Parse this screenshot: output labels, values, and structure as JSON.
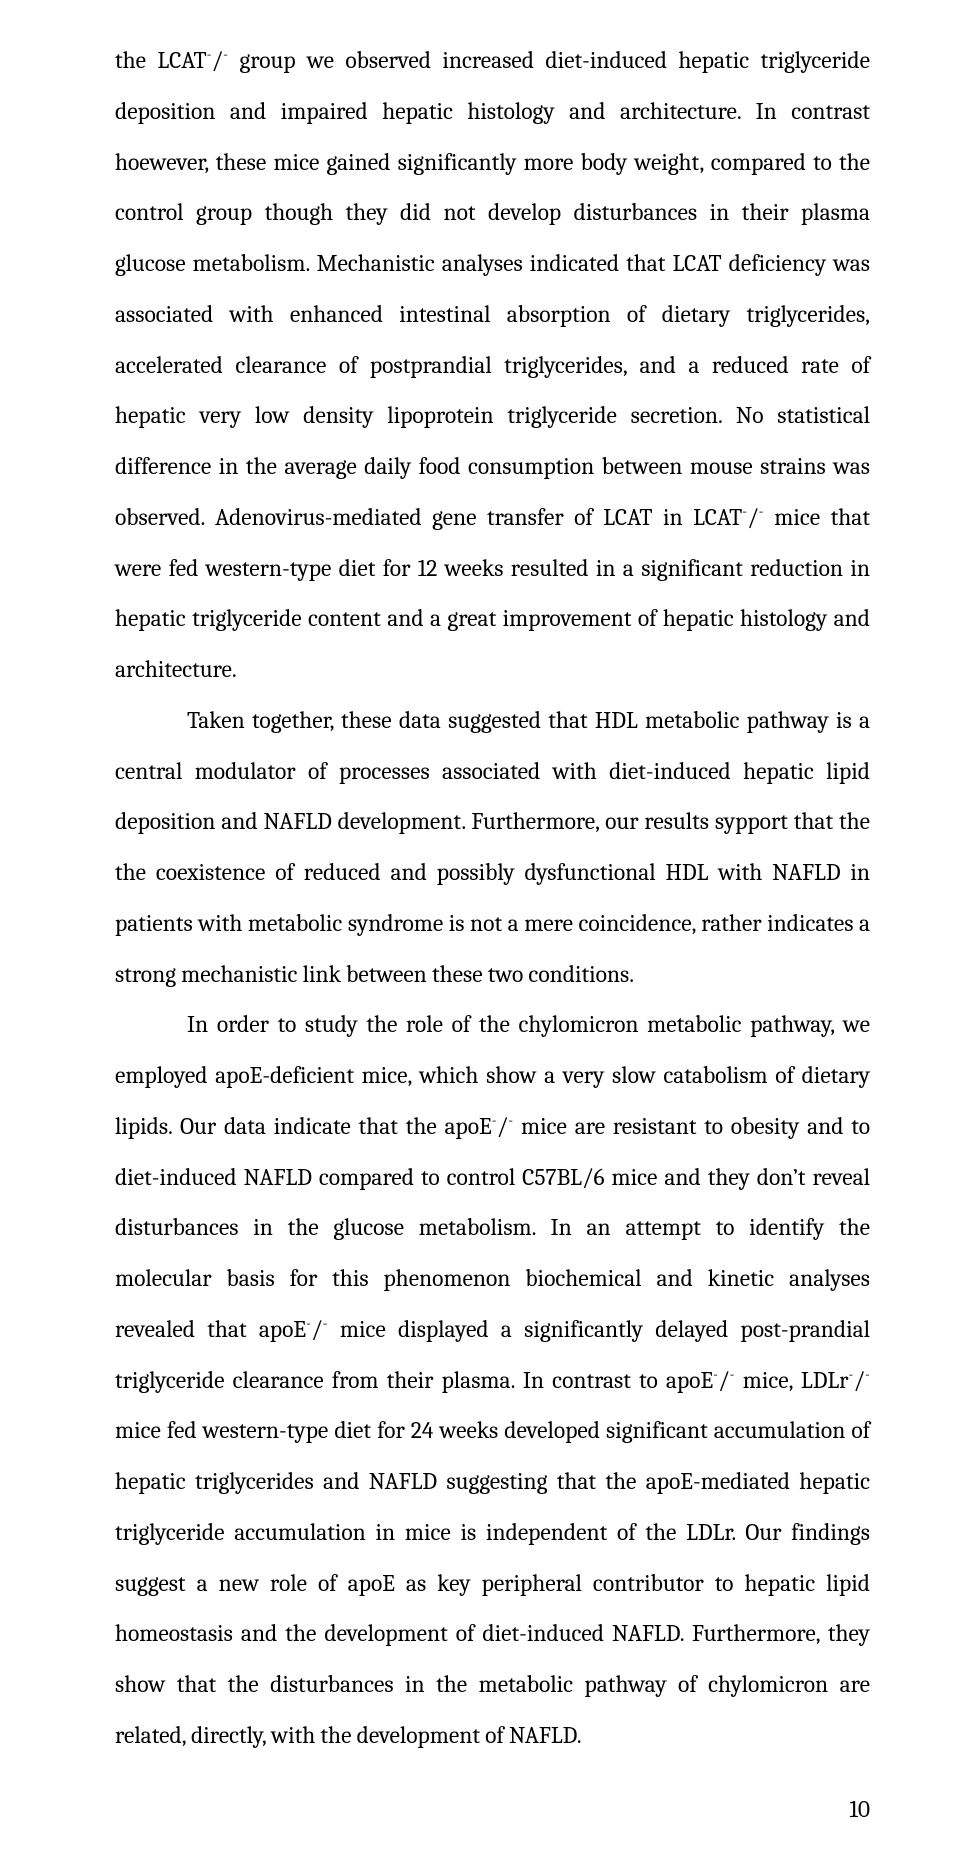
{
  "page": {
    "number": "10",
    "paragraphs": [
      {
        "indent": false,
        "html": "the LCAT<sup class=\"frac\">-</sup>/<sup class=\"frac\">-</sup> group we observed increased diet-induced hepatic triglyceride deposition and impaired hepatic histology and architecture. In contrast hoewever, these mice gained significantly more body weight, compared to the control group though they did not develop disturbances in their plasma glucose metabolism. Mechanistic analyses indicated that LCAT deficiency was associated with enhanced intestinal absorption of dietary triglycerides, accelerated clearance of postprandial triglycerides, and a reduced rate of hepatic very low density lipoprotein triglyceride secretion. No statistical difference in the average daily food consumption between mouse strains was observed. Adenovirus-mediated gene transfer of LCAT in LCAT<sup class=\"frac\">-</sup>/<sup class=\"frac\">-</sup> mice that were fed western-type diet for 12 weeks resulted in a significant reduction in hepatic triglyceride content and a great improvement of hepatic histology and architecture."
      },
      {
        "indent": true,
        "html": "Taken together, these data suggested that HDL metabolic pathway is a central modulator of processes associated with diet-induced hepatic lipid deposition and NAFLD development. Furthermore, our results sypport that the the coexistence of reduced and possibly dysfunctional HDL with NAFLD in patients with metabolic syndrome is not a mere coincidence,  rather indicates a strong mechanistic link between these two conditions."
      },
      {
        "indent": true,
        "html": "In order to study the role of the chylomicron metabolic pathway, we employed apoE-deficient mice, which show a very slow catabolism of dietary lipids. Our data indicate that the apoE<sup class=\"frac\">-</sup>/<sup class=\"frac\">-</sup> mice are resistant to obesity and to diet-induced NAFLD compared to control C57BL/6 mice and they don&rsquo;t reveal disturbances in the glucose metabolism. In an attempt to identify the molecular basis for this phenomenon biochemical and kinetic analyses revealed that apoE<sup class=\"frac\">-</sup>/<sup class=\"frac\">-</sup> mice displayed a significantly delayed post-prandial triglyceride clearance from their plasma. In contrast to apoE<sup class=\"frac\">-</sup>/<sup class=\"frac\">-</sup> mice, LDLr<sup class=\"frac\">-</sup>/<sup class=\"frac\">-</sup> mice fed western-type diet for 24 weeks developed significant accumulation of hepatic triglycerides and NAFLD suggesting that the apoE-mediated hepatic triglyceride accumulation in mice is independent of the LDLr. Our findings suggest a new role of apoE as key peripheral contributor to hepatic lipid homeostasis and the development of diet-induced NAFLD.  Furthermore, they show that the disturbances in the metabolic pathway of chylomicron are related, directly, with the development of NAFLD."
      }
    ]
  }
}
